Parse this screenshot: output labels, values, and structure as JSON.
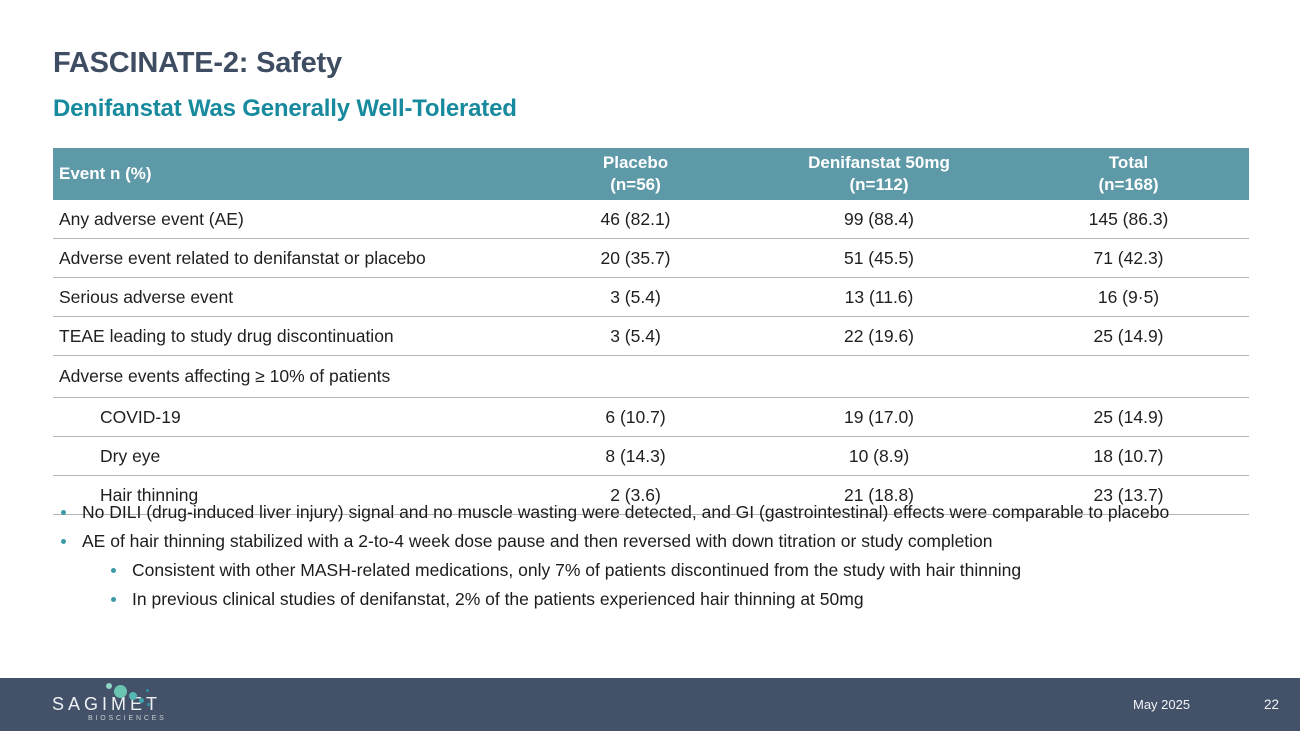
{
  "slide": {
    "title": "FASCINATE-2: Safety",
    "subtitle": "Denifanstat Was Generally Well-Tolerated"
  },
  "table": {
    "columns": [
      {
        "label": "Event n (%)",
        "sub": ""
      },
      {
        "label": "Placebo",
        "sub": "(n=56)"
      },
      {
        "label": "Denifanstat 50mg",
        "sub": "(n=112)"
      },
      {
        "label": "Total",
        "sub": "(n=168)"
      }
    ],
    "rows": [
      {
        "event": "Any adverse event (AE)",
        "placebo": "46 (82.1)",
        "denifanstat": "99 (88.4)",
        "total": "145 (86.3)"
      },
      {
        "event": "Adverse event related to denifanstat or placebo",
        "placebo": "20 (35.7)",
        "denifanstat": "51 (45.5)",
        "total": "71 (42.3)"
      },
      {
        "event": "Serious adverse event",
        "placebo": "3 (5.4)",
        "denifanstat": "13 (11.6)",
        "total": "16 (9·5)"
      },
      {
        "event": "TEAE leading to study drug discontinuation",
        "placebo": "3 (5.4)",
        "denifanstat": "22 (19.6)",
        "total": "25 (14.9)"
      },
      {
        "event": "Adverse events affecting ≥ 10% of patients",
        "section": true
      },
      {
        "event": "COVID-19",
        "placebo": "6 (10.7)",
        "denifanstat": "19 (17.0)",
        "total": "25 (14.9)",
        "indent": true
      },
      {
        "event": "Dry eye",
        "placebo": "8 (14.3)",
        "denifanstat": "10 (8.9)",
        "total": "18 (10.7)",
        "indent": true
      },
      {
        "event": "Hair thinning",
        "placebo": "2 (3.6)",
        "denifanstat": "21 (18.8)",
        "total": "23 (13.7)",
        "indent": true
      }
    ]
  },
  "bullets": [
    {
      "level": 1,
      "text": "No DILI (drug-induced liver injury) signal and no muscle wasting were detected, and GI (gastrointestinal) effects were comparable to placebo"
    },
    {
      "level": 1,
      "text": "AE of hair thinning stabilized with a 2-to-4 week dose pause and then reversed with down titration or study completion"
    },
    {
      "level": 2,
      "text": "Consistent with other MASH-related medications, only 7% of patients discontinued from the study with hair thinning"
    },
    {
      "level": 2,
      "text": "In previous clinical studies of denifanstat, 2% of the patients experienced hair thinning at 50mg"
    }
  ],
  "footer": {
    "logo_text": "SAGIMET",
    "logo_subtext": "BIOSCIENCES",
    "date": "May 2025",
    "page_number": "22"
  },
  "colors": {
    "title": "#3f4d63",
    "accent_teal": "#188a9e",
    "table_header_bg": "#5e99a8",
    "footer_bg": "#435169",
    "logo_dot_green": "#6ac5b0",
    "logo_dot_teal": "#2f93a5"
  }
}
